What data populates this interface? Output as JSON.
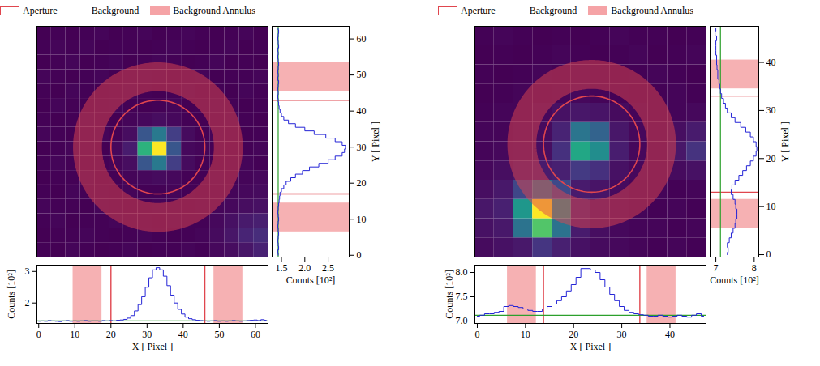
{
  "chart_data": [
    {
      "type": "image_profiles",
      "series": [
        {
          "name": "Aperture",
          "color": "#e0464e",
          "marker": "outline"
        },
        {
          "name": "Background",
          "color": "#2ca02c",
          "marker": "line"
        },
        {
          "name": "Background Annulus",
          "color": "#f5a3a6",
          "marker": "filled"
        }
      ],
      "legend": "top",
      "aperture": {
        "x": 33,
        "y": 30,
        "r": 13
      },
      "annulus": {
        "r_in": 15.5,
        "r_out": 23.5
      },
      "background": 1.43,
      "xlim": [
        -0.5,
        63.5
      ],
      "ylim": [
        -0.5,
        63.5
      ],
      "xticks": [
        0,
        10,
        20,
        30,
        40,
        50,
        60
      ],
      "yticks": [
        0,
        10,
        20,
        30,
        40,
        50,
        60
      ],
      "xlabel": "X [ Pixel ]",
      "ylabel": "Y [ Pixel ]",
      "image": {
        "cells": [
          [
            1.43,
            1.42,
            1.44,
            1.43,
            1.42,
            1.43,
            1.44,
            1.42,
            1.43,
            1.43,
            1.44,
            1.43,
            1.45,
            1.47,
            1.5,
            1.55
          ],
          [
            1.42,
            1.43,
            1.43,
            1.44,
            1.43,
            1.42,
            1.43,
            1.44,
            1.43,
            1.42,
            1.43,
            1.44,
            1.46,
            1.5,
            1.56,
            1.6
          ],
          [
            1.43,
            1.44,
            1.42,
            1.43,
            1.43,
            1.44,
            1.43,
            1.43,
            1.42,
            1.44,
            1.43,
            1.43,
            1.45,
            1.48,
            1.52,
            1.54
          ],
          [
            1.44,
            1.43,
            1.43,
            1.42,
            1.44,
            1.43,
            1.42,
            1.43,
            1.44,
            1.43,
            1.42,
            1.43,
            1.44,
            1.45,
            1.47,
            1.48
          ],
          [
            1.43,
            1.42,
            1.44,
            1.43,
            1.43,
            1.42,
            1.44,
            1.43,
            1.43,
            1.44,
            1.43,
            1.42,
            1.43,
            1.44,
            1.45,
            1.46
          ],
          [
            1.42,
            1.43,
            1.43,
            1.44,
            1.42,
            1.43,
            1.44,
            1.45,
            1.46,
            1.45,
            1.43,
            1.43,
            1.44,
            1.43,
            1.44,
            1.45
          ],
          [
            1.43,
            1.44,
            1.43,
            1.42,
            1.43,
            1.44,
            1.47,
            1.8,
            2.0,
            1.68,
            1.46,
            1.43,
            1.42,
            1.43,
            1.44,
            1.43
          ],
          [
            1.42,
            1.43,
            1.44,
            1.43,
            1.42,
            1.45,
            1.53,
            2.34,
            2.85,
            1.8,
            1.45,
            1.44,
            1.43,
            1.42,
            1.43,
            1.44
          ],
          [
            1.44,
            1.43,
            1.42,
            1.43,
            1.44,
            1.43,
            1.47,
            1.8,
            2.0,
            1.68,
            1.46,
            1.43,
            1.44,
            1.43,
            1.42,
            1.43
          ],
          [
            1.43,
            1.42,
            1.43,
            1.44,
            1.43,
            1.42,
            1.44,
            1.45,
            1.47,
            1.45,
            1.43,
            1.42,
            1.43,
            1.44,
            1.43,
            1.42
          ],
          [
            1.42,
            1.44,
            1.43,
            1.42,
            1.43,
            1.44,
            1.43,
            1.42,
            1.43,
            1.44,
            1.42,
            1.43,
            1.44,
            1.43,
            1.42,
            1.43
          ],
          [
            1.43,
            1.42,
            1.44,
            1.43,
            1.42,
            1.43,
            1.44,
            1.43,
            1.42,
            1.43,
            1.44,
            1.42,
            1.43,
            1.42,
            1.44,
            1.43
          ],
          [
            1.44,
            1.43,
            1.42,
            1.43,
            1.44,
            1.42,
            1.43,
            1.44,
            1.43,
            1.42,
            1.43,
            1.44,
            1.42,
            1.43,
            1.43,
            1.44
          ],
          [
            1.42,
            1.43,
            1.44,
            1.42,
            1.43,
            1.44,
            1.42,
            1.43,
            1.44,
            1.43,
            1.42,
            1.43,
            1.44,
            1.42,
            1.43,
            1.42
          ],
          [
            1.43,
            1.44,
            1.43,
            1.44,
            1.42,
            1.43,
            1.43,
            1.42,
            1.43,
            1.44,
            1.43,
            1.42,
            1.43,
            1.44,
            1.42,
            1.43
          ],
          [
            1.42,
            1.43,
            1.42,
            1.43,
            1.44,
            1.42,
            1.43,
            1.44,
            1.42,
            1.43,
            1.44,
            1.43,
            1.42,
            1.43,
            1.44,
            1.42
          ]
        ]
      },
      "x_profile": {
        "x": [
          0,
          1,
          2,
          3,
          4,
          5,
          6,
          7,
          8,
          9,
          10,
          11,
          12,
          13,
          14,
          15,
          16,
          17,
          18,
          19,
          20,
          21,
          22,
          23,
          24,
          25,
          26,
          27,
          28,
          29,
          30,
          31,
          32,
          33,
          34,
          35,
          36,
          37,
          38,
          39,
          40,
          41,
          42,
          43,
          44,
          45,
          46,
          47,
          48,
          49,
          50,
          51,
          52,
          53,
          54,
          55,
          56,
          57,
          58,
          59,
          60,
          61,
          62,
          63
        ],
        "values": [
          1.42,
          1.43,
          1.42,
          1.44,
          1.43,
          1.42,
          1.41,
          1.43,
          1.44,
          1.42,
          1.43,
          1.42,
          1.43,
          1.44,
          1.42,
          1.43,
          1.43,
          1.42,
          1.44,
          1.43,
          1.44,
          1.43,
          1.45,
          1.46,
          1.48,
          1.52,
          1.6,
          1.75,
          1.95,
          2.2,
          2.5,
          2.8,
          3.05,
          3.12,
          3.05,
          2.85,
          2.55,
          2.25,
          2.0,
          1.8,
          1.65,
          1.55,
          1.5,
          1.47,
          1.45,
          1.44,
          1.43,
          1.42,
          1.43,
          1.44,
          1.42,
          1.43,
          1.42,
          1.43,
          1.44,
          1.43,
          1.42,
          1.43,
          1.44,
          1.45,
          1.46,
          1.44,
          1.47,
          1.45
        ],
        "ylim": [
          1.35,
          3.2
        ],
        "yticks": [
          2,
          3
        ],
        "ylabel": "Counts [10²]"
      },
      "y_profile": {
        "y": [
          0,
          1,
          2,
          3,
          4,
          5,
          6,
          7,
          8,
          9,
          10,
          11,
          12,
          13,
          14,
          15,
          16,
          17,
          18,
          19,
          20,
          21,
          22,
          23,
          24,
          25,
          26,
          27,
          28,
          29,
          30,
          31,
          32,
          33,
          34,
          35,
          36,
          37,
          38,
          39,
          40,
          41,
          42,
          43,
          44,
          45,
          46,
          47,
          48,
          49,
          50,
          51,
          52,
          53,
          54,
          55,
          56,
          57,
          58,
          59,
          60,
          61,
          62,
          63
        ],
        "values": [
          1.43,
          1.42,
          1.44,
          1.43,
          1.42,
          1.43,
          1.44,
          1.43,
          1.42,
          1.43,
          1.44,
          1.43,
          1.42,
          1.43,
          1.44,
          1.45,
          1.46,
          1.47,
          1.5,
          1.55,
          1.6,
          1.7,
          1.8,
          1.95,
          2.1,
          2.3,
          2.5,
          2.65,
          2.8,
          2.85,
          2.87,
          2.8,
          2.65,
          2.45,
          2.2,
          2.0,
          1.8,
          1.65,
          1.55,
          1.5,
          1.47,
          1.45,
          1.44,
          1.43,
          1.42,
          1.43,
          1.42,
          1.43,
          1.44,
          1.42,
          1.43,
          1.42,
          1.43,
          1.44,
          1.43,
          1.42,
          1.43,
          1.42,
          1.44,
          1.43,
          1.42,
          1.43,
          1.44,
          1.43
        ],
        "xlim": [
          1.3,
          2.95
        ],
        "xticks": [
          1.5,
          {
            "value": 2,
            "label": "2.0"
          },
          2.5
        ],
        "xlabel": "Counts [10²]"
      }
    },
    {
      "type": "image_profiles",
      "series": [
        {
          "name": "Aperture",
          "color": "#e0464e",
          "marker": "outline"
        },
        {
          "name": "Background",
          "color": "#2ca02c",
          "marker": "line"
        },
        {
          "name": "Background Annulus",
          "color": "#f5a3a6",
          "marker": "filled"
        }
      ],
      "legend": "top",
      "aperture": {
        "x": 23.75,
        "y": 23,
        "r": 10
      },
      "annulus": {
        "r_in": 11.5,
        "r_out": 17.5
      },
      "background": 7.12,
      "xlim": [
        -0.5,
        47.5
      ],
      "ylim": [
        -0.5,
        47.5
      ],
      "xticks": [
        0,
        10,
        20,
        30,
        40
      ],
      "yticks": [
        0,
        10,
        20,
        30,
        40
      ],
      "xlabel": "X [ Pixel ]",
      "ylabel": "Y [ Pixel ]",
      "image": {
        "cells": [
          [
            7.14,
            7.16,
            7.19,
            7.31,
            7.22,
            7.16,
            7.14,
            7.13,
            7.12,
            7.11,
            7.12,
            7.11
          ],
          [
            7.16,
            7.19,
            7.62,
            8.09,
            7.62,
            7.2,
            7.15,
            7.13,
            7.12,
            7.12,
            7.11,
            7.12
          ],
          [
            7.18,
            7.22,
            7.82,
            8.46,
            7.82,
            7.22,
            7.16,
            7.13,
            7.12,
            7.11,
            7.12,
            7.11
          ],
          [
            7.15,
            7.19,
            7.39,
            7.62,
            7.4,
            7.2,
            7.17,
            7.14,
            7.12,
            7.12,
            7.11,
            7.12
          ],
          [
            7.13,
            7.15,
            7.18,
            7.2,
            7.22,
            7.33,
            7.29,
            7.16,
            7.13,
            7.12,
            7.14,
            7.16
          ],
          [
            7.12,
            7.13,
            7.14,
            7.15,
            7.29,
            7.91,
            7.76,
            7.21,
            7.13,
            7.12,
            7.18,
            7.3
          ],
          [
            7.12,
            7.12,
            7.13,
            7.14,
            7.23,
            7.63,
            7.53,
            7.18,
            7.13,
            7.12,
            7.15,
            7.2
          ],
          [
            7.11,
            7.12,
            7.12,
            7.13,
            7.16,
            7.18,
            7.17,
            7.14,
            7.12,
            7.11,
            7.12,
            7.13
          ],
          [
            7.1,
            7.11,
            7.12,
            7.11,
            7.12,
            7.13,
            7.12,
            7.11,
            7.1,
            7.11,
            7.12,
            7.11
          ],
          [
            7.11,
            7.1,
            7.11,
            7.12,
            7.11,
            7.12,
            7.11,
            7.1,
            7.11,
            7.12,
            7.11,
            7.1
          ],
          [
            7.1,
            7.11,
            7.1,
            7.11,
            7.12,
            7.11,
            7.1,
            7.11,
            7.12,
            7.1,
            7.11,
            7.12
          ],
          [
            7.11,
            7.12,
            7.11,
            7.1,
            7.11,
            7.1,
            7.11,
            7.12,
            7.11,
            7.11,
            7.1,
            7.11
          ]
        ]
      },
      "x_profile": {
        "x": [
          0,
          1,
          2,
          3,
          4,
          5,
          6,
          7,
          8,
          9,
          10,
          11,
          12,
          13,
          14,
          15,
          16,
          17,
          18,
          19,
          20,
          21,
          22,
          23,
          24,
          25,
          26,
          27,
          28,
          29,
          30,
          31,
          32,
          33,
          34,
          35,
          36,
          37,
          38,
          39,
          40,
          41,
          42,
          43,
          44,
          45,
          46,
          47
        ],
        "values": [
          7.1,
          7.12,
          7.15,
          7.15,
          7.18,
          7.2,
          7.3,
          7.32,
          7.3,
          7.28,
          7.25,
          7.22,
          7.2,
          7.2,
          7.25,
          7.3,
          7.35,
          7.42,
          7.5,
          7.62,
          7.75,
          7.9,
          8.08,
          8.08,
          8.05,
          8.0,
          7.85,
          7.7,
          7.55,
          7.42,
          7.3,
          7.22,
          7.18,
          7.15,
          7.13,
          7.12,
          7.1,
          7.1,
          7.12,
          7.1,
          7.08,
          7.1,
          7.12,
          7.1,
          7.08,
          7.12,
          7.15,
          7.1
        ],
        "ylim": [
          6.95,
          8.15
        ],
        "yticks": [
          {
            "value": 7,
            "label": "7.0"
          },
          7.5,
          {
            "value": 8,
            "label": "8.0"
          }
        ],
        "ylabel": "Counts [10²]"
      },
      "y_profile": {
        "y": [
          0,
          1,
          2,
          3,
          4,
          5,
          6,
          7,
          8,
          9,
          10,
          11,
          12,
          13,
          14,
          15,
          16,
          17,
          18,
          19,
          20,
          21,
          22,
          23,
          24,
          25,
          26,
          27,
          28,
          29,
          30,
          31,
          32,
          33,
          34,
          35,
          36,
          37,
          38,
          39,
          40,
          41,
          42,
          43,
          44,
          45,
          46,
          47
        ],
        "values": [
          7.3,
          7.32,
          7.3,
          7.35,
          7.4,
          7.45,
          7.5,
          7.52,
          7.55,
          7.55,
          7.52,
          7.5,
          7.45,
          7.4,
          7.42,
          7.5,
          7.6,
          7.7,
          7.8,
          7.9,
          7.98,
          8.05,
          8.07,
          8.05,
          7.98,
          7.9,
          7.78,
          7.65,
          7.5,
          7.4,
          7.3,
          7.25,
          7.2,
          7.15,
          7.12,
          7.1,
          7.08,
          7.05,
          7.05,
          7.03,
          7.02,
          7.02,
          7.0,
          7.0,
          7.0,
          7.02,
          6.98,
          7.0
        ],
        "xlim": [
          6.85,
          8.12
        ],
        "xticks": [
          7,
          8
        ],
        "xlabel": "Counts [10²]"
      }
    }
  ]
}
